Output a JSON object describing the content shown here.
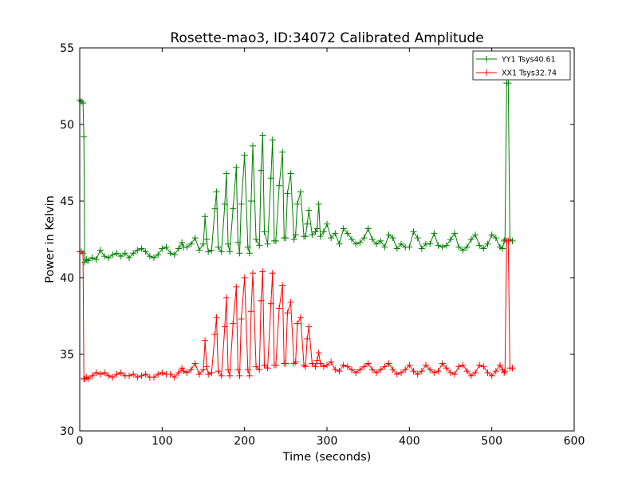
{
  "chart_data": {
    "type": "line",
    "title": "Rosette-mao3, ID:34072 Calibrated Amplitude",
    "xlabel": "Time (seconds)",
    "ylabel": "Power in Kelvin",
    "xlim": [
      0,
      600
    ],
    "ylim": [
      30,
      55
    ],
    "xticks": [
      "0",
      "100",
      "200",
      "300",
      "400",
      "500",
      "600"
    ],
    "yticks": [
      "30",
      "35",
      "40",
      "45",
      "50",
      "55"
    ],
    "grid": false,
    "legend_position": "top-right",
    "marker": "plus",
    "series": [
      {
        "name": "YY1 Tsys40.61",
        "color": "#008000",
        "x": [
          0,
          2,
          4,
          5,
          6,
          8,
          10,
          15,
          20,
          25,
          30,
          35,
          40,
          45,
          50,
          55,
          60,
          65,
          70,
          75,
          80,
          85,
          90,
          95,
          100,
          105,
          110,
          115,
          120,
          124,
          126,
          130,
          135,
          140,
          145,
          150,
          152,
          154,
          156,
          160,
          164,
          166,
          168,
          172,
          176,
          178,
          180,
          182,
          186,
          190,
          192,
          194,
          196,
          200,
          204,
          206,
          208,
          210,
          214,
          218,
          220,
          222,
          224,
          228,
          232,
          234,
          236,
          238,
          242,
          246,
          248,
          250,
          252,
          256,
          260,
          262,
          264,
          268,
          272,
          274,
          276,
          278,
          282,
          286,
          288,
          290,
          292,
          296,
          300,
          305,
          310,
          315,
          320,
          325,
          330,
          335,
          340,
          345,
          350,
          355,
          360,
          365,
          370,
          375,
          380,
          385,
          390,
          395,
          400,
          405,
          410,
          415,
          420,
          425,
          430,
          435,
          440,
          445,
          450,
          455,
          460,
          465,
          470,
          475,
          480,
          485,
          490,
          495,
          500,
          505,
          510,
          513,
          515,
          516,
          518,
          520,
          522,
          525
        ],
        "values": [
          51.6,
          51.5,
          51.4,
          49.2,
          41.0,
          41.2,
          41.1,
          41.3,
          41.2,
          41.8,
          41.4,
          41.3,
          41.5,
          41.6,
          41.4,
          41.6,
          41.3,
          41.6,
          41.8,
          41.9,
          41.7,
          41.4,
          41.3,
          41.5,
          41.9,
          42.0,
          41.6,
          41.5,
          41.9,
          42.3,
          42.0,
          42.0,
          42.2,
          42.6,
          41.8,
          42.2,
          44.0,
          42.5,
          41.7,
          41.8,
          44.5,
          45.6,
          42.0,
          41.7,
          44.8,
          46.8,
          42.2,
          41.7,
          44.5,
          47.2,
          42.3,
          41.6,
          44.8,
          48.0,
          42.0,
          41.6,
          45.0,
          48.6,
          42.5,
          42.1,
          47.0,
          49.3,
          43.0,
          42.2,
          46.5,
          49.0,
          42.4,
          42.4,
          46.0,
          48.2,
          42.6,
          42.6,
          45.5,
          46.8,
          42.5,
          42.8,
          44.8,
          45.6,
          42.7,
          42.7,
          43.5,
          44.4,
          42.8,
          43.0,
          43.2,
          44.8,
          42.7,
          43.0,
          43.5,
          42.6,
          42.9,
          42.2,
          43.2,
          42.9,
          42.5,
          42.2,
          42.3,
          42.6,
          43.2,
          42.5,
          42.2,
          42.4,
          42.0,
          42.8,
          42.6,
          41.9,
          42.2,
          42.0,
          42.0,
          43.0,
          42.6,
          41.9,
          42.2,
          42.2,
          42.9,
          42.1,
          42.0,
          42.1,
          42.5,
          42.9,
          42.0,
          41.8,
          42.0,
          42.5,
          42.8,
          42.1,
          41.9,
          42.2,
          42.8,
          42.6,
          42.0,
          41.9,
          42.4,
          42.5,
          52.7,
          52.7,
          42.5,
          42.4
        ]
      },
      {
        "name": "XX1 Tsys32.74",
        "color": "#ff0000",
        "x": [
          0,
          2,
          4,
          5,
          6,
          8,
          10,
          15,
          20,
          25,
          30,
          35,
          40,
          45,
          50,
          55,
          60,
          65,
          70,
          75,
          80,
          85,
          90,
          95,
          100,
          105,
          110,
          115,
          120,
          124,
          126,
          130,
          135,
          140,
          145,
          150,
          152,
          154,
          156,
          160,
          164,
          166,
          168,
          172,
          176,
          178,
          180,
          182,
          186,
          190,
          192,
          194,
          196,
          200,
          204,
          206,
          208,
          210,
          214,
          218,
          220,
          222,
          224,
          228,
          232,
          234,
          236,
          238,
          242,
          246,
          248,
          250,
          252,
          256,
          260,
          262,
          264,
          268,
          272,
          274,
          276,
          278,
          282,
          286,
          288,
          290,
          292,
          296,
          300,
          305,
          310,
          315,
          320,
          325,
          330,
          335,
          340,
          345,
          350,
          355,
          360,
          365,
          370,
          375,
          380,
          385,
          390,
          395,
          400,
          405,
          410,
          415,
          420,
          425,
          430,
          435,
          440,
          445,
          450,
          455,
          460,
          465,
          470,
          475,
          480,
          485,
          490,
          495,
          500,
          505,
          510,
          513,
          515,
          516,
          518,
          520,
          522,
          525
        ],
        "values": [
          41.7,
          41.7,
          41.6,
          33.4,
          33.4,
          33.5,
          33.4,
          33.6,
          33.8,
          33.7,
          33.8,
          33.6,
          33.5,
          33.7,
          33.8,
          33.6,
          33.6,
          33.7,
          33.5,
          33.6,
          33.7,
          33.5,
          33.5,
          33.7,
          33.8,
          33.7,
          33.7,
          33.5,
          33.8,
          34.1,
          33.9,
          33.8,
          34.0,
          34.4,
          33.7,
          34.0,
          35.9,
          34.2,
          33.7,
          33.8,
          36.3,
          37.4,
          33.9,
          33.6,
          36.8,
          38.7,
          34.0,
          33.6,
          37.0,
          39.4,
          34.0,
          33.6,
          37.3,
          40.0,
          34.0,
          33.6,
          37.8,
          40.3,
          34.2,
          34.0,
          38.5,
          40.4,
          34.3,
          34.1,
          38.3,
          40.3,
          34.3,
          34.3,
          38.0,
          39.5,
          34.4,
          34.4,
          37.7,
          38.4,
          34.4,
          34.5,
          37.0,
          37.4,
          34.3,
          34.2,
          36.0,
          36.8,
          34.4,
          34.2,
          34.6,
          35.1,
          34.4,
          34.2,
          34.3,
          34.5,
          34.0,
          33.9,
          34.3,
          34.2,
          34.0,
          33.8,
          34.0,
          34.2,
          34.4,
          34.0,
          33.8,
          34.0,
          34.2,
          34.4,
          34.0,
          33.7,
          33.8,
          34.0,
          34.3,
          33.9,
          33.7,
          33.9,
          34.3,
          34.0,
          33.8,
          33.9,
          34.4,
          34.1,
          33.8,
          33.7,
          34.2,
          34.3,
          33.9,
          33.6,
          33.8,
          34.3,
          34.2,
          33.8,
          33.6,
          33.9,
          34.3,
          34.0,
          33.8,
          33.9,
          42.4,
          42.4,
          34.1,
          34.1
        ]
      }
    ]
  }
}
